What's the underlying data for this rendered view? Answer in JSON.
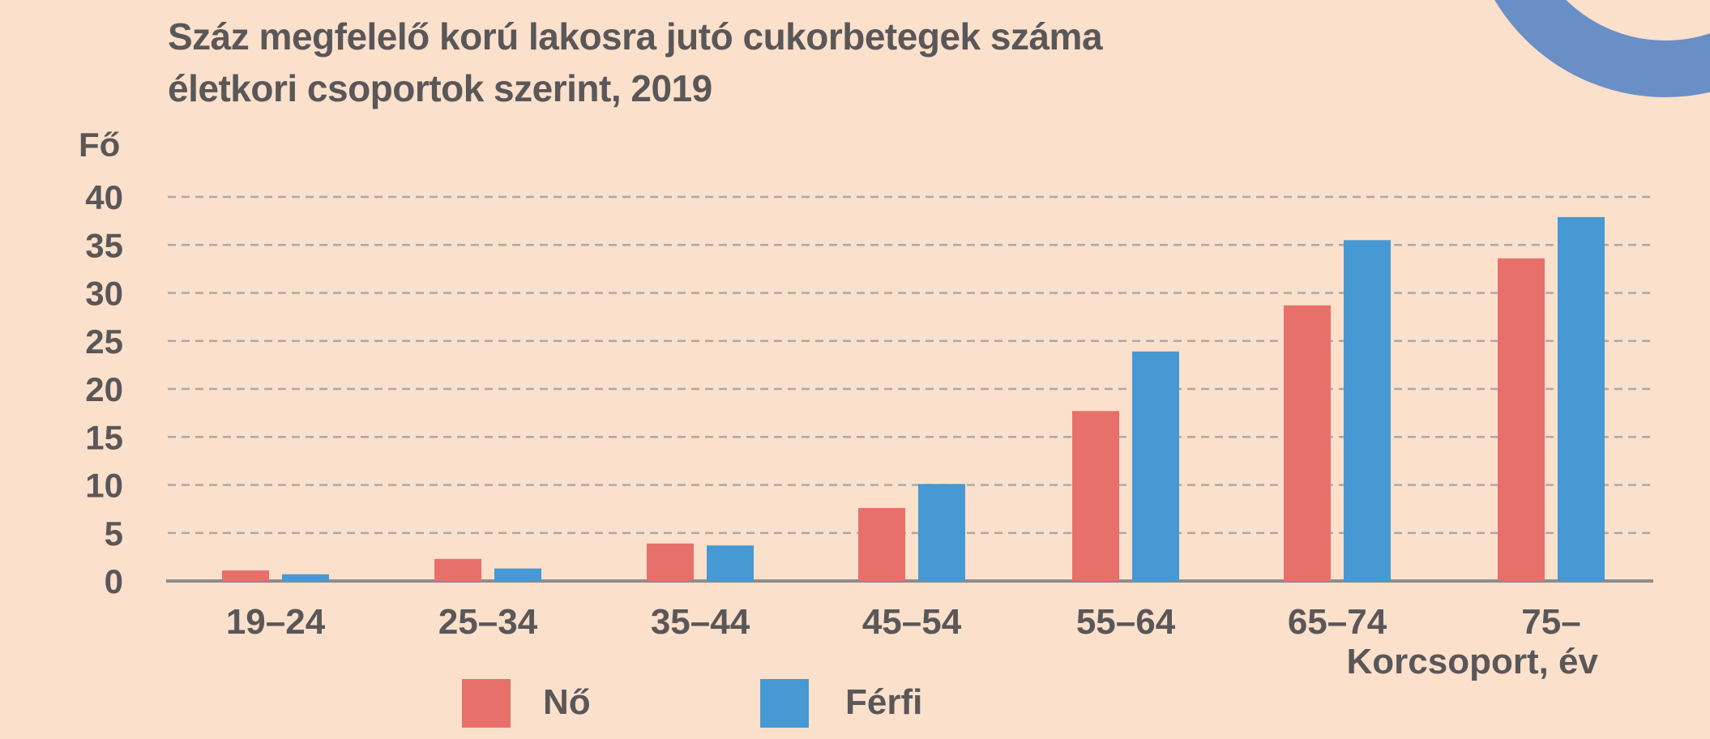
{
  "colors": {
    "background": "#fbe0cc",
    "text": "#5a5758",
    "gridline": "#aaaaaa",
    "axis": "#8c8c8c",
    "decor_ring": "#6a8fc6"
  },
  "chart_data": {
    "type": "bar",
    "title_lines": [
      "Száz megfelelő korú lakosra jutó cukorbetegek száma",
      "életkori csoportok szerint, 2019"
    ],
    "ylabel": "Fő",
    "xlabel": "Korcsoport, év",
    "categories": [
      "19–24",
      "25–34",
      "35–44",
      "45–54",
      "55–64",
      "65–74",
      "75–"
    ],
    "ylim": [
      0,
      40
    ],
    "yticks": [
      0,
      5,
      10,
      15,
      20,
      25,
      30,
      35,
      40
    ],
    "grid": true,
    "legend_position": "bottom",
    "series": [
      {
        "name": "Nő",
        "color": "#e8706a",
        "values": [
          1.1,
          2.3,
          3.9,
          7.6,
          17.7,
          28.7,
          33.6
        ]
      },
      {
        "name": "Férfi",
        "color": "#4699d2",
        "values": [
          0.7,
          1.3,
          3.7,
          10.1,
          23.9,
          35.5,
          37.9
        ]
      }
    ]
  }
}
